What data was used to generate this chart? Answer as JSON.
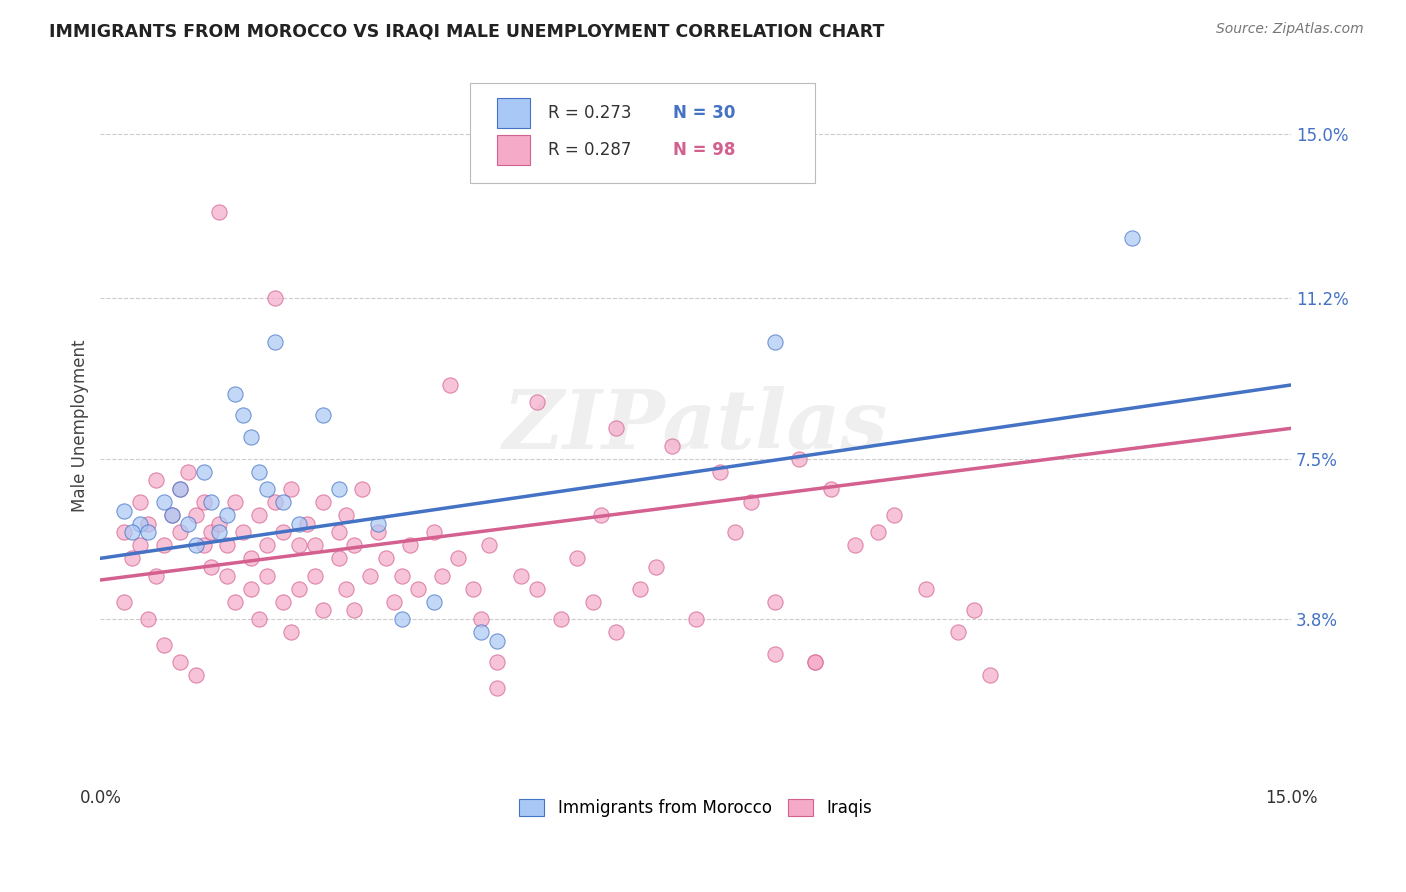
{
  "title": "IMMIGRANTS FROM MOROCCO VS IRAQI MALE UNEMPLOYMENT CORRELATION CHART",
  "source": "Source: ZipAtlas.com",
  "ylabel": "Male Unemployment",
  "ytick_labels": [
    "15.0%",
    "11.2%",
    "7.5%",
    "3.8%"
  ],
  "ytick_values": [
    0.15,
    0.112,
    0.075,
    0.038
  ],
  "xlim": [
    0.0,
    0.15
  ],
  "ylim": [
    0.0,
    0.165
  ],
  "morocco_color": "#aac8f5",
  "iraq_color": "#f5aac8",
  "morocco_edge_color": "#4472C4",
  "iraq_edge_color": "#d46090",
  "morocco_line_color": "#4472C4",
  "iraq_line_color": "#d46090",
  "watermark": "ZIPatlas",
  "morocco_scatter": [
    [
      0.003,
      0.063
    ],
    [
      0.005,
      0.06
    ],
    [
      0.006,
      0.058
    ],
    [
      0.008,
      0.065
    ],
    [
      0.009,
      0.062
    ],
    [
      0.01,
      0.068
    ],
    [
      0.011,
      0.06
    ],
    [
      0.012,
      0.055
    ],
    [
      0.013,
      0.072
    ],
    [
      0.014,
      0.065
    ],
    [
      0.015,
      0.058
    ],
    [
      0.016,
      0.062
    ],
    [
      0.017,
      0.09
    ],
    [
      0.018,
      0.085
    ],
    [
      0.019,
      0.08
    ],
    [
      0.02,
      0.072
    ],
    [
      0.021,
      0.068
    ],
    [
      0.022,
      0.102
    ],
    [
      0.023,
      0.065
    ],
    [
      0.025,
      0.06
    ],
    [
      0.028,
      0.085
    ],
    [
      0.03,
      0.068
    ],
    [
      0.035,
      0.06
    ],
    [
      0.038,
      0.038
    ],
    [
      0.042,
      0.042
    ],
    [
      0.048,
      0.035
    ],
    [
      0.05,
      0.033
    ],
    [
      0.085,
      0.102
    ],
    [
      0.13,
      0.126
    ],
    [
      0.004,
      0.058
    ]
  ],
  "iraq_scatter": [
    [
      0.003,
      0.058
    ],
    [
      0.004,
      0.052
    ],
    [
      0.005,
      0.065
    ],
    [
      0.005,
      0.055
    ],
    [
      0.006,
      0.06
    ],
    [
      0.007,
      0.07
    ],
    [
      0.007,
      0.048
    ],
    [
      0.008,
      0.055
    ],
    [
      0.009,
      0.062
    ],
    [
      0.01,
      0.068
    ],
    [
      0.01,
      0.058
    ],
    [
      0.011,
      0.072
    ],
    [
      0.012,
      0.062
    ],
    [
      0.013,
      0.055
    ],
    [
      0.013,
      0.065
    ],
    [
      0.014,
      0.058
    ],
    [
      0.014,
      0.05
    ],
    [
      0.015,
      0.06
    ],
    [
      0.015,
      0.132
    ],
    [
      0.016,
      0.055
    ],
    [
      0.016,
      0.048
    ],
    [
      0.017,
      0.065
    ],
    [
      0.017,
      0.042
    ],
    [
      0.018,
      0.058
    ],
    [
      0.019,
      0.052
    ],
    [
      0.019,
      0.045
    ],
    [
      0.02,
      0.062
    ],
    [
      0.02,
      0.038
    ],
    [
      0.021,
      0.055
    ],
    [
      0.021,
      0.048
    ],
    [
      0.022,
      0.065
    ],
    [
      0.022,
      0.112
    ],
    [
      0.023,
      0.058
    ],
    [
      0.023,
      0.042
    ],
    [
      0.024,
      0.068
    ],
    [
      0.024,
      0.035
    ],
    [
      0.025,
      0.055
    ],
    [
      0.025,
      0.045
    ],
    [
      0.026,
      0.06
    ],
    [
      0.027,
      0.055
    ],
    [
      0.027,
      0.048
    ],
    [
      0.028,
      0.065
    ],
    [
      0.028,
      0.04
    ],
    [
      0.03,
      0.058
    ],
    [
      0.03,
      0.052
    ],
    [
      0.031,
      0.062
    ],
    [
      0.031,
      0.045
    ],
    [
      0.032,
      0.055
    ],
    [
      0.032,
      0.04
    ],
    [
      0.033,
      0.068
    ],
    [
      0.034,
      0.048
    ],
    [
      0.035,
      0.058
    ],
    [
      0.036,
      0.052
    ],
    [
      0.037,
      0.042
    ],
    [
      0.038,
      0.048
    ],
    [
      0.039,
      0.055
    ],
    [
      0.04,
      0.045
    ],
    [
      0.042,
      0.058
    ],
    [
      0.043,
      0.048
    ],
    [
      0.044,
      0.092
    ],
    [
      0.045,
      0.052
    ],
    [
      0.047,
      0.045
    ],
    [
      0.048,
      0.038
    ],
    [
      0.049,
      0.055
    ],
    [
      0.05,
      0.028
    ],
    [
      0.053,
      0.048
    ],
    [
      0.055,
      0.088
    ],
    [
      0.055,
      0.045
    ],
    [
      0.058,
      0.038
    ],
    [
      0.06,
      0.052
    ],
    [
      0.062,
      0.042
    ],
    [
      0.063,
      0.062
    ],
    [
      0.065,
      0.082
    ],
    [
      0.065,
      0.035
    ],
    [
      0.068,
      0.045
    ],
    [
      0.07,
      0.05
    ],
    [
      0.072,
      0.078
    ],
    [
      0.075,
      0.038
    ],
    [
      0.078,
      0.072
    ],
    [
      0.08,
      0.058
    ],
    [
      0.082,
      0.065
    ],
    [
      0.085,
      0.042
    ],
    [
      0.088,
      0.075
    ],
    [
      0.09,
      0.028
    ],
    [
      0.092,
      0.068
    ],
    [
      0.095,
      0.055
    ],
    [
      0.098,
      0.058
    ],
    [
      0.1,
      0.062
    ],
    [
      0.104,
      0.045
    ],
    [
      0.108,
      0.035
    ],
    [
      0.11,
      0.04
    ],
    [
      0.112,
      0.025
    ],
    [
      0.003,
      0.042
    ],
    [
      0.006,
      0.038
    ],
    [
      0.008,
      0.032
    ],
    [
      0.01,
      0.028
    ],
    [
      0.012,
      0.025
    ],
    [
      0.09,
      0.028
    ],
    [
      0.085,
      0.03
    ],
    [
      0.05,
      0.022
    ]
  ],
  "morocco_trendline_x": [
    0.0,
    0.15
  ],
  "morocco_trendline_y": [
    0.052,
    0.092
  ],
  "iraq_trendline_x": [
    0.0,
    0.15
  ],
  "iraq_trendline_y": [
    0.047,
    0.082
  ]
}
